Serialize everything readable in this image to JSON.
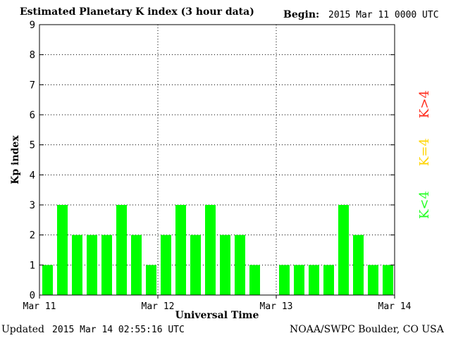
{
  "header": {
    "title": "Estimated Planetary K index (3 hour data)",
    "begin_label": "Begin:",
    "begin_value": "2015 Mar 11 0000 UTC"
  },
  "footer": {
    "updated_label": "Updated",
    "updated_value": "2015 Mar 14 02:55:16 UTC",
    "credit": "NOAA/SWPC Boulder, CO USA"
  },
  "legend": [
    {
      "label": "K>4",
      "color": "#ff2a1a"
    },
    {
      "label": "K=4",
      "color": "#ffd400"
    },
    {
      "label": "K<4",
      "color": "#22ff22"
    }
  ],
  "chart_data": {
    "type": "bar",
    "title": "Estimated Planetary K index (3 hour data)",
    "xlabel": "Universal Time",
    "ylabel": "Kp index",
    "ylim": [
      0,
      9
    ],
    "yticks": [
      "0",
      "1",
      "2",
      "3",
      "4",
      "5",
      "6",
      "7",
      "8",
      "9"
    ],
    "xticks": [
      "Mar 11",
      "Mar 12",
      "Mar 13",
      "Mar 14"
    ],
    "grid": true,
    "bar_color": "#00ff00",
    "slots_per_day": 8,
    "values": [
      1,
      3,
      2,
      2,
      2,
      3,
      2,
      1,
      2,
      3,
      2,
      3,
      2,
      2,
      1,
      null,
      1,
      1,
      1,
      1,
      3,
      2,
      1,
      1
    ]
  }
}
